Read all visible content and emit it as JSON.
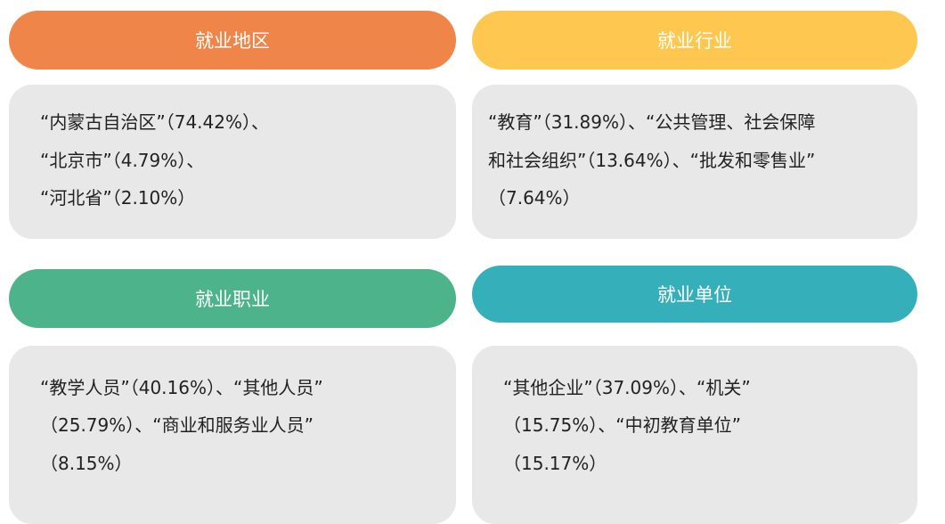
{
  "panels": [
    {
      "title": "就业地区",
      "lines": [
        "“内蒙古自治区”（74.42%）、",
        "“北京市”（4.79%）、",
        "“河北省”（2.10%）"
      ]
    },
    {
      "title": "就业行业",
      "lines": [
        "“教育”（31.89%）、“公共管理、社会保障",
        "和社会组织”（13.64%）、“批发和零售业”",
        "（7.64%）"
      ]
    },
    {
      "title": "就业职业",
      "lines": [
        "“教学人员”（40.16%）、“其他人员”",
        "（25.79%）、“商业和服务业人员”",
        "（8.15%）"
      ]
    },
    {
      "title": "就业单位",
      "lines": [
        "“其他企业”（37.09%）、“机关”",
        "（15.75%）、“中初教育单位”",
        "（15.17%）"
      ]
    }
  ]
}
